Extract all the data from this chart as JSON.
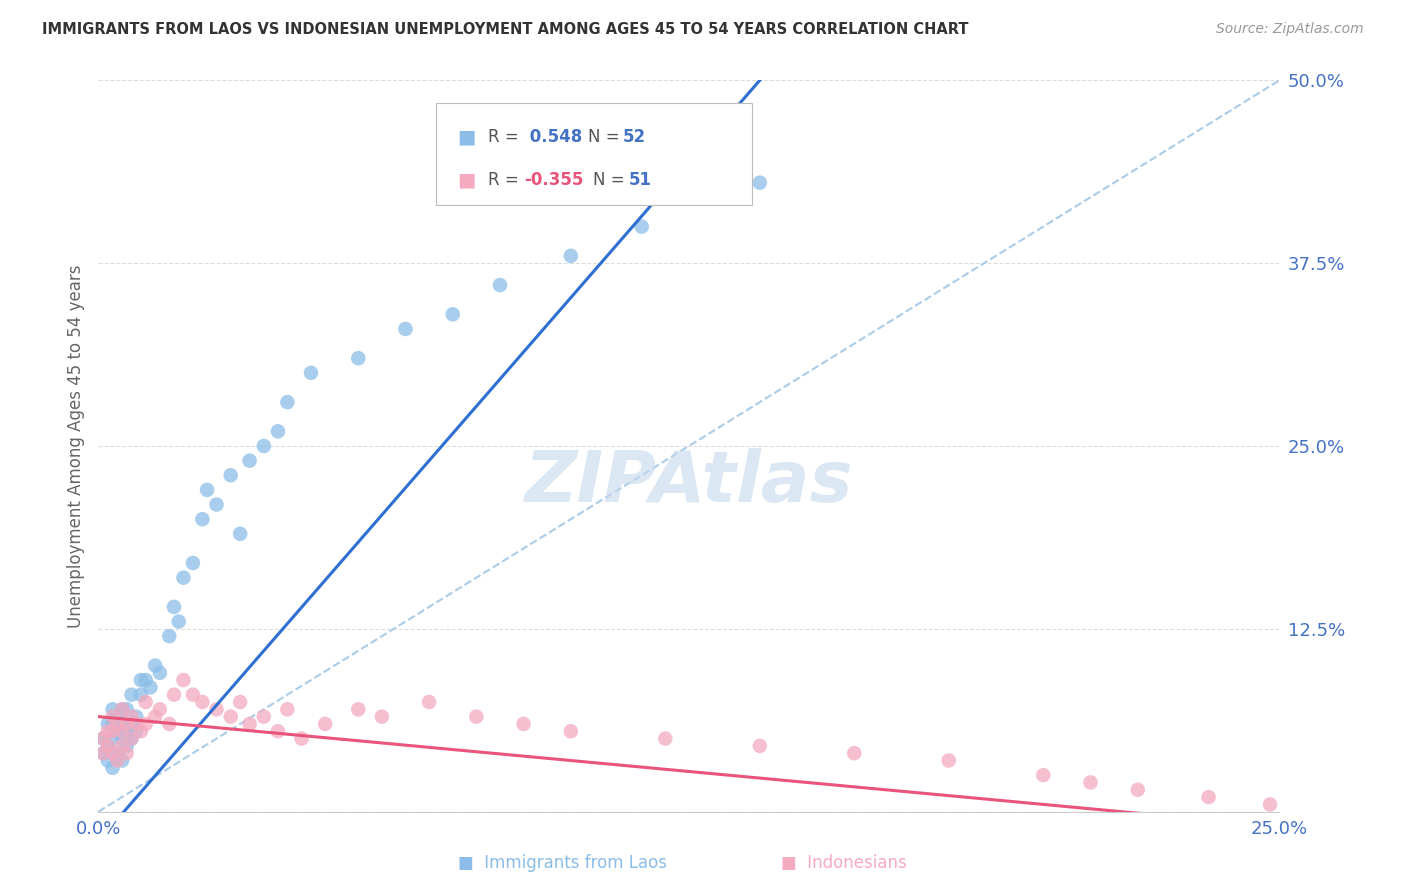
{
  "title": "IMMIGRANTS FROM LAOS VS INDONESIAN UNEMPLOYMENT AMONG AGES 45 TO 54 YEARS CORRELATION CHART",
  "source": "Source: ZipAtlas.com",
  "ylabel": "Unemployment Among Ages 45 to 54 years",
  "legend_blue_R": "0.548",
  "legend_blue_N": "52",
  "legend_pink_R": "-0.355",
  "legend_pink_N": "51",
  "legend_label_blue": "Immigrants from Laos",
  "legend_label_pink": "Indonesians",
  "xlim": [
    0.0,
    0.25
  ],
  "ylim": [
    0.0,
    0.5
  ],
  "ytick_vals": [
    0.0,
    0.125,
    0.25,
    0.375,
    0.5
  ],
  "ytick_labels": [
    "",
    "12.5%",
    "25.0%",
    "37.5%",
    "50.0%"
  ],
  "xtick_vals": [
    0.0,
    0.05,
    0.1,
    0.15,
    0.2,
    0.25
  ],
  "xtick_labels": [
    "0.0%",
    "",
    "",
    "",
    "",
    "25.0%"
  ],
  "blue_dots_x": [
    0.001,
    0.001,
    0.002,
    0.002,
    0.002,
    0.003,
    0.003,
    0.003,
    0.003,
    0.004,
    0.004,
    0.004,
    0.005,
    0.005,
    0.005,
    0.005,
    0.006,
    0.006,
    0.006,
    0.007,
    0.007,
    0.007,
    0.008,
    0.008,
    0.009,
    0.009,
    0.01,
    0.011,
    0.012,
    0.013,
    0.015,
    0.016,
    0.017,
    0.018,
    0.02,
    0.022,
    0.023,
    0.025,
    0.028,
    0.03,
    0.032,
    0.035,
    0.038,
    0.04,
    0.045,
    0.055,
    0.065,
    0.075,
    0.085,
    0.1,
    0.115,
    0.14
  ],
  "blue_dots_y": [
    0.05,
    0.04,
    0.045,
    0.035,
    0.06,
    0.03,
    0.05,
    0.06,
    0.07,
    0.04,
    0.055,
    0.065,
    0.035,
    0.05,
    0.06,
    0.07,
    0.045,
    0.055,
    0.07,
    0.05,
    0.06,
    0.08,
    0.055,
    0.065,
    0.08,
    0.09,
    0.09,
    0.085,
    0.1,
    0.095,
    0.12,
    0.14,
    0.13,
    0.16,
    0.17,
    0.2,
    0.22,
    0.21,
    0.23,
    0.19,
    0.24,
    0.25,
    0.26,
    0.28,
    0.3,
    0.31,
    0.33,
    0.34,
    0.36,
    0.38,
    0.4,
    0.43
  ],
  "pink_dots_x": [
    0.001,
    0.001,
    0.002,
    0.002,
    0.003,
    0.003,
    0.003,
    0.004,
    0.004,
    0.005,
    0.005,
    0.005,
    0.006,
    0.006,
    0.007,
    0.007,
    0.008,
    0.009,
    0.01,
    0.01,
    0.012,
    0.013,
    0.015,
    0.016,
    0.018,
    0.02,
    0.022,
    0.025,
    0.028,
    0.03,
    0.032,
    0.035,
    0.038,
    0.04,
    0.043,
    0.048,
    0.055,
    0.06,
    0.07,
    0.08,
    0.09,
    0.1,
    0.12,
    0.14,
    0.16,
    0.18,
    0.2,
    0.21,
    0.22,
    0.235,
    0.248
  ],
  "pink_dots_y": [
    0.05,
    0.04,
    0.045,
    0.055,
    0.04,
    0.055,
    0.065,
    0.035,
    0.06,
    0.045,
    0.055,
    0.07,
    0.04,
    0.06,
    0.05,
    0.065,
    0.06,
    0.055,
    0.06,
    0.075,
    0.065,
    0.07,
    0.06,
    0.08,
    0.09,
    0.08,
    0.075,
    0.07,
    0.065,
    0.075,
    0.06,
    0.065,
    0.055,
    0.07,
    0.05,
    0.06,
    0.07,
    0.065,
    0.075,
    0.065,
    0.06,
    0.055,
    0.05,
    0.045,
    0.04,
    0.035,
    0.025,
    0.02,
    0.015,
    0.01,
    0.005
  ],
  "blue_dot_color": "#8BBDE8",
  "pink_dot_color": "#F4AABF",
  "blue_line_color": "#2E6FD4",
  "pink_line_color": "#E8547A",
  "diagonal_color": "#AACCE8",
  "axis_label_color": "#4472C4",
  "title_color": "#333333",
  "watermark_color": "#C5D8EE",
  "bg_color": "#FFFFFF",
  "grid_color": "#DDDDDD"
}
